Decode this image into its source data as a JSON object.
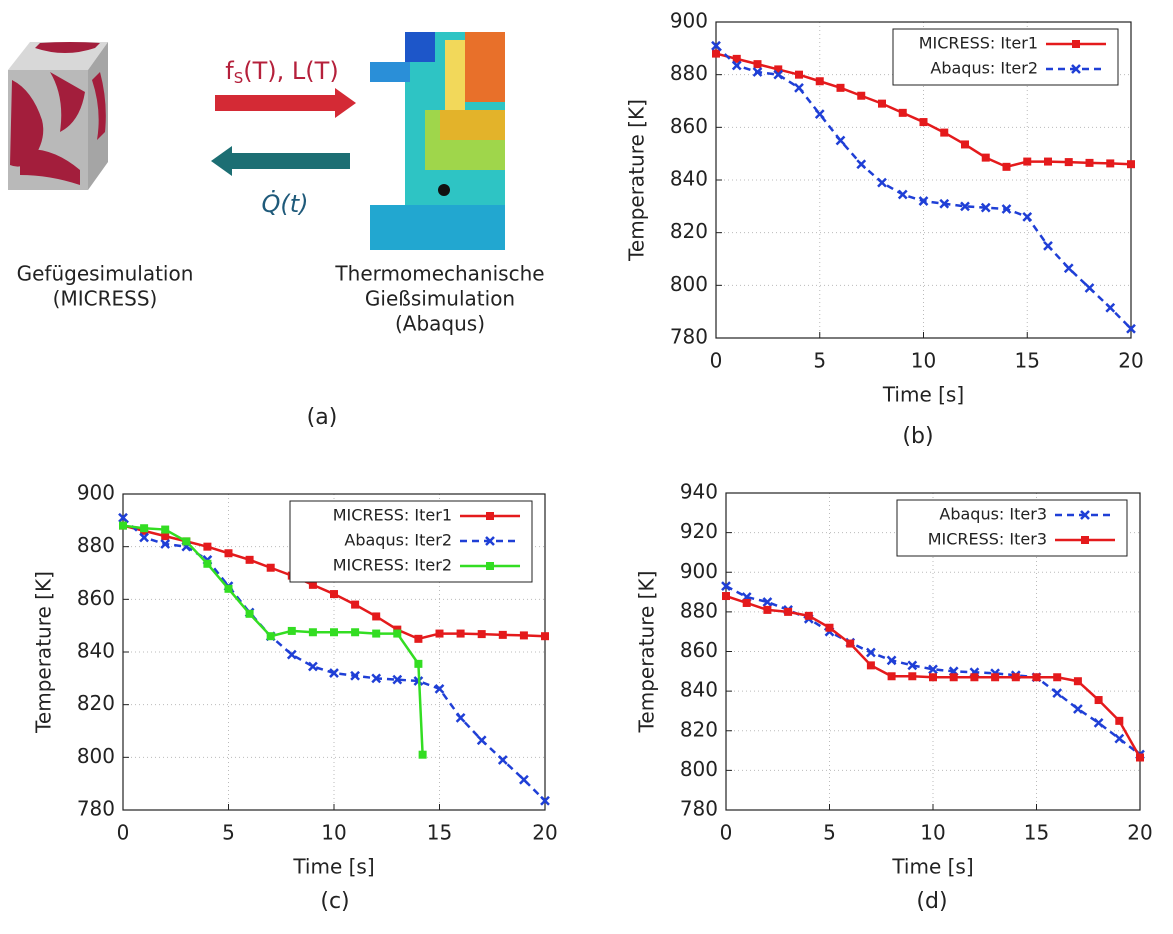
{
  "diagram": {
    "arrow_right_label": {
      "base": "f",
      "sub": "S",
      "rest": "(T), L(T)"
    },
    "arrow_left_label": "Q̇(t)",
    "left_caption": [
      "Gefügesimulation",
      "(MICRESS)"
    ],
    "right_caption": [
      "Thermomechanische",
      "Gießsimulation",
      "(Abaqus)"
    ],
    "panel_label": "(a)"
  },
  "chart_data": [
    {
      "type": "line",
      "panel_label": "(b)",
      "xlabel": "Time [s]",
      "ylabel": "Temperature [K]",
      "x": [
        0,
        1,
        2,
        3,
        4,
        5,
        6,
        7,
        8,
        9,
        10,
        11,
        12,
        13,
        14,
        15,
        16,
        17,
        18,
        19,
        20
      ],
      "xlim": [
        0,
        20
      ],
      "xticks": [
        0,
        5,
        10,
        15,
        20
      ],
      "ylim": [
        780,
        900
      ],
      "yticks": [
        780,
        800,
        820,
        840,
        860,
        880,
        900
      ],
      "grid": true,
      "legend": "upper right",
      "series": [
        {
          "name": "MICRESS: Iter1",
          "color": "#e41a1c",
          "dash": "solid",
          "marker": "square",
          "values": [
            888,
            886,
            884,
            882,
            880,
            877.5,
            875,
            872,
            869,
            865.5,
            862,
            858,
            853.5,
            848.5,
            845,
            847,
            847,
            846.8,
            846.5,
            846.3,
            846
          ]
        },
        {
          "name": "Abaqus: Iter2",
          "color": "#1f3fd6",
          "dash": "dashed",
          "marker": "x",
          "values": [
            891,
            883.5,
            881,
            880,
            875,
            865,
            855,
            846,
            839,
            834.5,
            832,
            831,
            830,
            829.5,
            829,
            826,
            815,
            806.5,
            799,
            791.5,
            783.5
          ]
        }
      ]
    },
    {
      "type": "line",
      "panel_label": "(c)",
      "xlabel": "Time [s]",
      "ylabel": "Temperature [K]",
      "x": [
        0,
        1,
        2,
        3,
        4,
        5,
        6,
        7,
        8,
        9,
        10,
        11,
        12,
        13,
        14,
        15,
        16,
        17,
        18,
        19,
        20
      ],
      "xlim": [
        0,
        20
      ],
      "xticks": [
        0,
        5,
        10,
        15,
        20
      ],
      "ylim": [
        780,
        900
      ],
      "yticks": [
        780,
        800,
        820,
        840,
        860,
        880,
        900
      ],
      "grid": true,
      "legend": "upper right",
      "series": [
        {
          "name": "MICRESS: Iter1",
          "color": "#e41a1c",
          "dash": "solid",
          "marker": "square",
          "values": [
            888,
            886,
            884,
            882,
            880,
            877.5,
            875,
            872,
            869,
            865.5,
            862,
            858,
            853.5,
            848.5,
            845,
            847,
            847,
            846.8,
            846.5,
            846.3,
            846
          ]
        },
        {
          "name": "Abaqus: Iter2",
          "color": "#1f3fd6",
          "dash": "dashed",
          "marker": "x",
          "values": [
            891,
            883.5,
            881,
            880,
            875,
            865,
            855,
            846,
            839,
            834.5,
            832,
            831,
            830,
            829.5,
            829,
            826,
            815,
            806.5,
            799,
            791.5,
            783.5
          ]
        },
        {
          "name": "MICRESS: Iter2",
          "color": "#33dd22",
          "dash": "solid",
          "marker": "square",
          "x": [
            0,
            1,
            2,
            3,
            4,
            5,
            6,
            7,
            8,
            9,
            10,
            11,
            12,
            13,
            14,
            14.2
          ],
          "values": [
            888,
            887,
            886.5,
            882,
            873.5,
            864,
            854.5,
            846,
            848,
            847.5,
            847.5,
            847.5,
            847,
            847,
            835.5,
            801
          ]
        }
      ]
    },
    {
      "type": "line",
      "panel_label": "(d)",
      "xlabel": "Time [s]",
      "ylabel": "Temperature [K]",
      "x": [
        0,
        1,
        2,
        3,
        4,
        5,
        6,
        7,
        8,
        9,
        10,
        11,
        12,
        13,
        14,
        15,
        16,
        17,
        18,
        19,
        20
      ],
      "xlim": [
        0,
        20
      ],
      "xticks": [
        0,
        5,
        10,
        15,
        20
      ],
      "ylim": [
        780,
        940
      ],
      "yticks": [
        780,
        800,
        820,
        840,
        860,
        880,
        900,
        920,
        940
      ],
      "grid": true,
      "legend": "upper right",
      "series": [
        {
          "name": "Abaqus: Iter3",
          "color": "#1f3fd6",
          "dash": "dashed",
          "marker": "x",
          "values": [
            893,
            887.5,
            885,
            881,
            876.5,
            870,
            864.5,
            859.5,
            855.5,
            853,
            851,
            850,
            849.5,
            849,
            848,
            847,
            839,
            831,
            824,
            816,
            808
          ]
        },
        {
          "name": "MICRESS: Iter3",
          "color": "#e41a1c",
          "dash": "solid",
          "marker": "square",
          "values": [
            888,
            884.5,
            881,
            880,
            878,
            872,
            864,
            853,
            847.5,
            847.5,
            847,
            847,
            847,
            847,
            847,
            847,
            847,
            845,
            835.5,
            825,
            806.5
          ]
        }
      ]
    }
  ]
}
